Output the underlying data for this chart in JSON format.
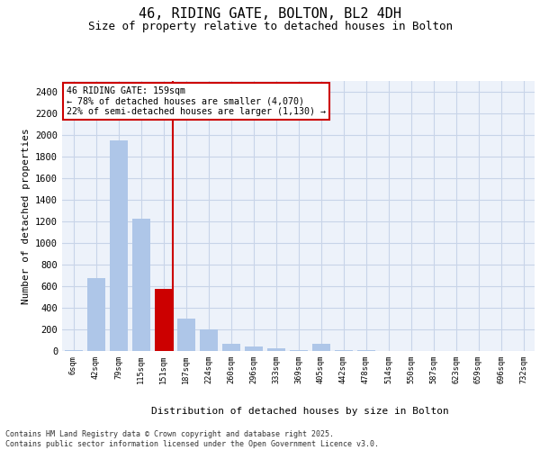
{
  "title1": "46, RIDING GATE, BOLTON, BL2 4DH",
  "title2": "Size of property relative to detached houses in Bolton",
  "xlabel": "Distribution of detached houses by size in Bolton",
  "ylabel": "Number of detached properties",
  "categories": [
    "6sqm",
    "42sqm",
    "79sqm",
    "115sqm",
    "151sqm",
    "187sqm",
    "224sqm",
    "260sqm",
    "296sqm",
    "333sqm",
    "369sqm",
    "405sqm",
    "442sqm",
    "478sqm",
    "514sqm",
    "550sqm",
    "587sqm",
    "623sqm",
    "659sqm",
    "696sqm",
    "732sqm"
  ],
  "values": [
    5,
    675,
    1950,
    1225,
    575,
    300,
    200,
    70,
    45,
    25,
    10,
    65,
    10,
    5,
    0,
    0,
    0,
    0,
    0,
    0,
    0
  ],
  "highlight_index": 4,
  "bar_color": "#aec6e8",
  "highlight_color": "#cc0000",
  "bg_color": "#edf2fa",
  "grid_color": "#c8d4e8",
  "annotation_text": "46 RIDING GATE: 159sqm\n← 78% of detached houses are smaller (4,070)\n22% of semi-detached houses are larger (1,130) →",
  "annotation_box_color": "#cc0000",
  "ylim": [
    0,
    2500
  ],
  "yticks": [
    0,
    200,
    400,
    600,
    800,
    1000,
    1200,
    1400,
    1600,
    1800,
    2000,
    2200,
    2400
  ],
  "vline_color": "#cc0000",
  "footnote": "Contains HM Land Registry data © Crown copyright and database right 2025.\nContains public sector information licensed under the Open Government Licence v3.0."
}
